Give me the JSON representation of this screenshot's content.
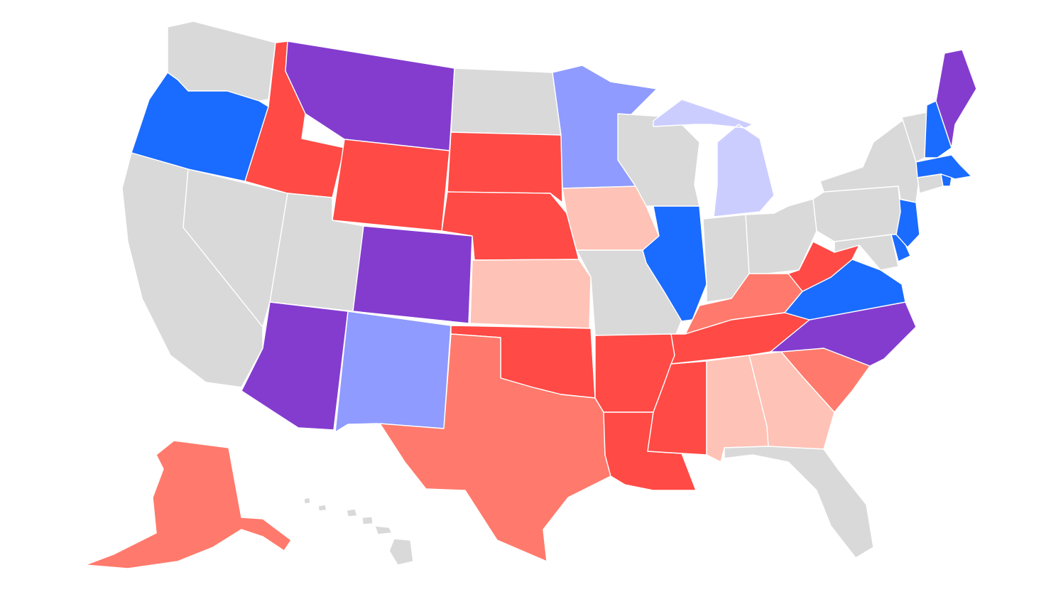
{
  "palette": {
    "safe_dem": "#1a6bff",
    "likely_dem": "#8f9bff",
    "lean_dem": "#cccdff",
    "tossup": "#843ccf",
    "lean_rep": "#ffc2b6",
    "likely_rep": "#ff7a6c",
    "safe_rep": "#ff4a45",
    "no_race": "#d9d9d9"
  },
  "states": [
    {
      "code": "WA",
      "rating": "no_race"
    },
    {
      "code": "OR",
      "rating": "safe_dem"
    },
    {
      "code": "CA",
      "rating": "no_race"
    },
    {
      "code": "NV",
      "rating": "no_race"
    },
    {
      "code": "ID",
      "rating": "safe_rep"
    },
    {
      "code": "MT",
      "rating": "tossup"
    },
    {
      "code": "WY",
      "rating": "safe_rep"
    },
    {
      "code": "UT",
      "rating": "no_race"
    },
    {
      "code": "AZ",
      "rating": "tossup"
    },
    {
      "code": "CO",
      "rating": "tossup"
    },
    {
      "code": "NM",
      "rating": "likely_dem"
    },
    {
      "code": "ND",
      "rating": "no_race"
    },
    {
      "code": "SD",
      "rating": "safe_rep"
    },
    {
      "code": "NE",
      "rating": "safe_rep"
    },
    {
      "code": "KS",
      "rating": "lean_rep"
    },
    {
      "code": "OK",
      "rating": "safe_rep"
    },
    {
      "code": "TX",
      "rating": "likely_rep"
    },
    {
      "code": "MN",
      "rating": "likely_dem"
    },
    {
      "code": "IA",
      "rating": "lean_rep"
    },
    {
      "code": "MO",
      "rating": "no_race"
    },
    {
      "code": "AR",
      "rating": "safe_rep"
    },
    {
      "code": "LA",
      "rating": "safe_rep"
    },
    {
      "code": "WI",
      "rating": "no_race"
    },
    {
      "code": "MI",
      "rating": "lean_dem"
    },
    {
      "code": "IL",
      "rating": "safe_dem"
    },
    {
      "code": "IN",
      "rating": "no_race"
    },
    {
      "code": "OH",
      "rating": "no_race"
    },
    {
      "code": "KY",
      "rating": "likely_rep"
    },
    {
      "code": "TN",
      "rating": "safe_rep"
    },
    {
      "code": "MS",
      "rating": "safe_rep"
    },
    {
      "code": "AL",
      "rating": "lean_rep"
    },
    {
      "code": "GA",
      "rating": "lean_rep"
    },
    {
      "code": "FL",
      "rating": "no_race"
    },
    {
      "code": "SC",
      "rating": "likely_rep"
    },
    {
      "code": "NC",
      "rating": "tossup"
    },
    {
      "code": "VA",
      "rating": "safe_dem"
    },
    {
      "code": "WV",
      "rating": "safe_rep"
    },
    {
      "code": "MD",
      "rating": "no_race"
    },
    {
      "code": "DE",
      "rating": "safe_dem"
    },
    {
      "code": "NJ",
      "rating": "safe_dem"
    },
    {
      "code": "PA",
      "rating": "no_race"
    },
    {
      "code": "NY",
      "rating": "no_race"
    },
    {
      "code": "CT",
      "rating": "no_race"
    },
    {
      "code": "RI",
      "rating": "safe_dem"
    },
    {
      "code": "MA",
      "rating": "safe_dem"
    },
    {
      "code": "VT",
      "rating": "no_race"
    },
    {
      "code": "NH",
      "rating": "safe_dem"
    },
    {
      "code": "ME",
      "rating": "tossup"
    },
    {
      "code": "AK",
      "rating": "likely_rep"
    },
    {
      "code": "HI",
      "rating": "no_race"
    }
  ]
}
